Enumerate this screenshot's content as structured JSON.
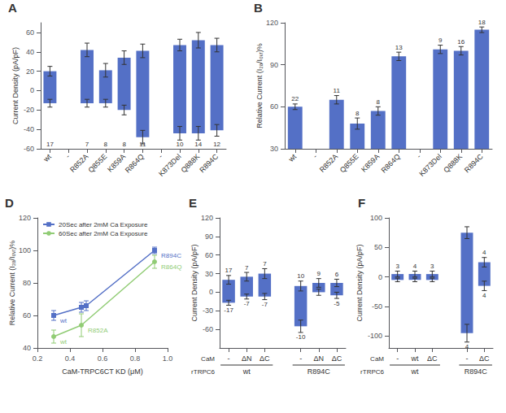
{
  "chart_data": [
    {
      "type": "bar",
      "title": "A",
      "categories": [
        "wt",
        "-",
        "R852A",
        "Q855E",
        "K859A",
        "R864Q",
        "-",
        "K873Del",
        "Q888K",
        "R894C"
      ],
      "inward": [
        20,
        null,
        42,
        21,
        34,
        41,
        null,
        47,
        52,
        47
      ],
      "outward": [
        -13,
        null,
        -13,
        -13,
        -20,
        -48,
        null,
        -44,
        -44,
        -41
      ],
      "inward_err": [
        5,
        null,
        7,
        7,
        7,
        7,
        null,
        6,
        8,
        7
      ],
      "outward_err": [
        4,
        null,
        4,
        4,
        5,
        7,
        null,
        7,
        7,
        6
      ],
      "n_labels": [
        "17",
        null,
        "7",
        "8",
        "8",
        "11",
        null,
        "10",
        "14",
        "12"
      ],
      "ylabel": "Current Density (pA/pF)",
      "ylim": [
        -60,
        70
      ],
      "yticks": [
        -60,
        -40,
        -20,
        0,
        20,
        40,
        60
      ],
      "grid": false
    },
    {
      "type": "bar",
      "title": "B",
      "categories": [
        "wt",
        "-",
        "R852A",
        "Q855E",
        "K859A",
        "R864Q",
        "-",
        "K873Del",
        "Q888K",
        "R894C"
      ],
      "values": [
        60,
        null,
        65,
        48,
        57,
        96,
        null,
        101,
        100,
        115
      ],
      "errors": [
        2,
        null,
        3,
        4,
        3,
        3,
        null,
        3,
        3,
        2
      ],
      "n_labels": [
        "22",
        null,
        "11",
        "8",
        "8",
        "13",
        null,
        "9",
        "16",
        "18"
      ],
      "ylabel": "Relative Current (I₂⁣ₐ/I₀ᵥᵣ)%",
      "ylim": [
        30,
        120
      ],
      "yticks": [
        30,
        60,
        90,
        120
      ],
      "grid": false
    },
    {
      "type": "line",
      "title": "D",
      "xlabel": "CaM-TRPC6CT KD (μM)",
      "ylabel": "Relative Current (I₂⁣ₐ/I₀ᵥᵣ)%",
      "xlim": [
        0.2,
        1.0
      ],
      "xticks": [
        0.2,
        0.4,
        0.6,
        0.8,
        {
          "value": 1.0,
          "label": "1.0"
        }
      ],
      "ylim": [
        40,
        120
      ],
      "yticks": [
        40,
        60,
        80,
        100,
        120
      ],
      "legend": "upper left",
      "grid": false,
      "series": [
        {
          "name": "20Sec after 2mM Ca Exposure",
          "marker": "square",
          "x": [
            0.3,
            0.47,
            0.5,
            0.92
          ],
          "values": [
            60,
            65,
            66,
            100
          ],
          "errors": [
            3,
            3,
            3,
            2
          ],
          "point_labels": [
            "wt",
            null,
            null,
            "R894C"
          ]
        },
        {
          "name": "60Sec after 2mM Ca Exposure",
          "marker": "circle",
          "x": [
            0.3,
            0.47,
            0.92
          ],
          "values": [
            47,
            54,
            93
          ],
          "errors": [
            4,
            7,
            4
          ],
          "point_labels": [
            "wt",
            "R852A",
            "R864Q"
          ]
        }
      ]
    },
    {
      "type": "bar",
      "title": "E",
      "categories": [
        "-",
        "ΔN",
        "ΔC",
        "-",
        "ΔN",
        "ΔC"
      ],
      "groups": [
        "wt",
        "wt",
        "wt",
        "R894C",
        "R894C",
        "R894C"
      ],
      "category_row_label": "CaM",
      "group_row_label": "rTRPC6",
      "inward": [
        20,
        25,
        30,
        10,
        15,
        15
      ],
      "outward": [
        -17,
        -7,
        -7,
        -55,
        0,
        -5
      ],
      "inward_err": [
        7,
        7,
        8,
        8,
        7,
        6
      ],
      "outward_err": [
        4,
        4,
        5,
        10,
        5,
        5
      ],
      "n_inward": [
        "17",
        "7",
        "7",
        "10",
        "9",
        "6"
      ],
      "n_outward": [
        "-17",
        "-7",
        "-7",
        "-10",
        null,
        "-5"
      ],
      "ylabel": "Current Density (pA/pF)",
      "ylim": [
        -90,
        120
      ],
      "yticks": [
        -60,
        -30,
        0,
        30,
        60,
        90,
        120
      ],
      "grid": false
    },
    {
      "type": "bar",
      "title": "F",
      "categories": [
        "-",
        "wt",
        "ΔC",
        "-",
        "ΔC"
      ],
      "groups": [
        "wt",
        "wt",
        "wt",
        "R894C",
        "R894C"
      ],
      "category_row_label": "CaM",
      "group_row_label": "rTRPC6",
      "inward": [
        5,
        5,
        5,
        75,
        25
      ],
      "outward": [
        -5,
        -5,
        -5,
        -95,
        -15
      ],
      "inward_err": [
        5,
        5,
        5,
        10,
        8
      ],
      "outward_err": [
        3,
        3,
        3,
        15,
        8
      ],
      "n_inward": [
        "3",
        "4",
        "3",
        null,
        "4"
      ],
      "n_outward": [
        null,
        null,
        null,
        "4",
        "4"
      ],
      "ylabel": "Current Density (pA/pF)",
      "ylim": [
        -120,
        100
      ],
      "yticks": [
        -100,
        -50,
        0,
        50,
        100
      ],
      "grid": false
    }
  ]
}
